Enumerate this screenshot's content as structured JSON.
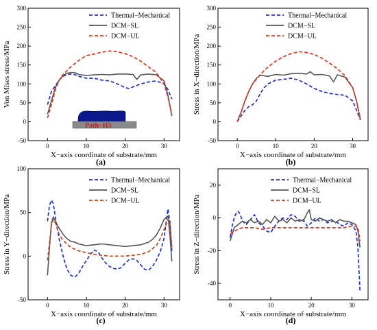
{
  "chart_data": [
    {
      "type": "line",
      "panel_label": "(a)",
      "xlabel": "X−axis coordinate of substrate/mm",
      "ylabel": "Von Mises stress/MPa",
      "xlim": [
        -5,
        34
      ],
      "ylim": [
        -50,
        300
      ],
      "xticks": [
        0,
        10,
        20,
        30
      ],
      "yticks": [
        -50,
        0,
        50,
        100,
        150,
        200,
        250,
        300
      ],
      "legend_position": "top-right",
      "inset_label": "Path−H3",
      "series": [
        {
          "name": "Thermal−Mechanical",
          "color": "#1f2fd6",
          "dash": "dashed",
          "x": [
            0,
            1,
            2,
            3,
            4,
            5,
            6,
            7,
            8,
            9,
            10,
            12,
            14,
            16,
            18,
            20,
            21,
            22,
            24,
            26,
            28,
            30,
            31,
            32
          ],
          "y": [
            45,
            80,
            95,
            110,
            120,
            125,
            126,
            125,
            120,
            118,
            115,
            115,
            110,
            108,
            100,
            90,
            88,
            92,
            100,
            105,
            108,
            100,
            85,
            60
          ]
        },
        {
          "name": "DCM−SL",
          "color": "#555555",
          "dash": "solid",
          "x": [
            0,
            1,
            2,
            3,
            4,
            5,
            6,
            7,
            8,
            10,
            12,
            14,
            16,
            18,
            20,
            22,
            23,
            24,
            26,
            28,
            30,
            31,
            32
          ],
          "y": [
            20,
            55,
            90,
            110,
            122,
            128,
            130,
            130,
            125,
            122,
            124,
            125,
            124,
            126,
            126,
            125,
            112,
            124,
            126,
            124,
            108,
            70,
            15
          ]
        },
        {
          "name": "DCM−UL",
          "color": "#e8301f",
          "dash": "dashed",
          "x": [
            0,
            1,
            2,
            3,
            4,
            6,
            8,
            10,
            12,
            14,
            16,
            18,
            20,
            22,
            24,
            26,
            28,
            30,
            31,
            32
          ],
          "y": [
            10,
            45,
            85,
            110,
            125,
            145,
            162,
            175,
            179,
            184,
            187,
            185,
            180,
            172,
            160,
            145,
            130,
            100,
            65,
            20
          ]
        }
      ]
    },
    {
      "type": "line",
      "panel_label": "(b)",
      "xlabel": "X−axis coordinate of substrate/mm",
      "ylabel": "Stress in X−direction/MPa",
      "xlim": [
        -5,
        34
      ],
      "ylim": [
        -50,
        300
      ],
      "xticks": [
        0,
        10,
        20,
        30
      ],
      "yticks": [
        -50,
        0,
        50,
        100,
        150,
        200,
        250,
        300
      ],
      "legend_position": "top-right",
      "series": [
        {
          "name": "Thermal−Mechanical",
          "color": "#1f2fd6",
          "dash": "dashed",
          "x": [
            0,
            1,
            2,
            3,
            4,
            5,
            6,
            7,
            8,
            10,
            12,
            14,
            16,
            18,
            20,
            22,
            24,
            26,
            28,
            30,
            31,
            32
          ],
          "y": [
            0,
            15,
            30,
            40,
            45,
            55,
            75,
            90,
            100,
            110,
            112,
            115,
            110,
            100,
            88,
            80,
            75,
            72,
            70,
            55,
            30,
            5
          ]
        },
        {
          "name": "DCM−SL",
          "color": "#555555",
          "dash": "solid",
          "x": [
            0,
            1,
            2,
            3,
            4,
            5,
            6,
            8,
            10,
            12,
            14,
            16,
            18,
            19,
            20,
            22,
            24,
            25,
            26,
            28,
            30,
            31,
            32
          ],
          "y": [
            0,
            25,
            55,
            80,
            100,
            115,
            123,
            120,
            125,
            123,
            127,
            128,
            126,
            132,
            124,
            125,
            121,
            105,
            124,
            118,
            90,
            55,
            5
          ]
        },
        {
          "name": "DCM−UL",
          "color": "#e8301f",
          "dash": "dashed",
          "x": [
            0,
            1,
            2,
            3,
            4,
            6,
            8,
            10,
            12,
            14,
            16,
            18,
            20,
            22,
            24,
            26,
            28,
            30,
            31,
            32
          ],
          "y": [
            0,
            25,
            55,
            80,
            100,
            125,
            145,
            160,
            172,
            180,
            185,
            183,
            178,
            168,
            155,
            140,
            122,
            90,
            55,
            5
          ]
        }
      ]
    },
    {
      "type": "line",
      "panel_label": "(c)",
      "xlabel": "X−axis coordinate of substrate/mm",
      "ylabel": "Stress in Y−direction/MPa",
      "xlim": [
        -5,
        34
      ],
      "ylim": [
        -50,
        100
      ],
      "xticks": [
        0,
        10,
        20,
        30
      ],
      "yticks": [
        -50,
        0,
        50,
        100
      ],
      "legend_position": "top-right",
      "series": [
        {
          "name": "Thermal−Mechanical",
          "color": "#1f2fd6",
          "dash": "dashed",
          "x": [
            0,
            0.5,
            1,
            1.5,
            2,
            3,
            4,
            5,
            6,
            7,
            8,
            9,
            10,
            11,
            12,
            13,
            14,
            15,
            16,
            17,
            18,
            19,
            20,
            21,
            22,
            23,
            24,
            25,
            26,
            27,
            28,
            29,
            30,
            30.5,
            31,
            31.5,
            32
          ],
          "y": [
            40,
            58,
            64,
            60,
            45,
            20,
            0,
            -15,
            -22,
            -24,
            -20,
            -12,
            -5,
            2,
            7,
            5,
            -2,
            -8,
            -12,
            -14,
            -15,
            -13,
            -8,
            -4,
            -3,
            -5,
            -10,
            -15,
            -16,
            -12,
            -5,
            5,
            20,
            38,
            54,
            40,
            5
          ]
        },
        {
          "name": "DCM−SL",
          "color": "#555555",
          "dash": "solid",
          "x": [
            0,
            0.5,
            1,
            1.5,
            2,
            3,
            4,
            5,
            6,
            7,
            8,
            9,
            10,
            12,
            14,
            16,
            18,
            20,
            22,
            24,
            26,
            27,
            28,
            29,
            30,
            31,
            31.5,
            32
          ],
          "y": [
            -22,
            10,
            38,
            45,
            40,
            32,
            25,
            20,
            17,
            16,
            14,
            13,
            12,
            13,
            14,
            13,
            12,
            11,
            12,
            13,
            16,
            19,
            24,
            32,
            42,
            46,
            25,
            -6
          ]
        },
        {
          "name": "DCM−UL",
          "color": "#c8451a",
          "dash": "dashed",
          "x": [
            0,
            0.5,
            1,
            1.5,
            2,
            3,
            4,
            6,
            8,
            10,
            12,
            14,
            16,
            18,
            20,
            22,
            24,
            26,
            28,
            29,
            30,
            31,
            31.5,
            32
          ],
          "y": [
            -5,
            15,
            35,
            42,
            38,
            25,
            18,
            10,
            6,
            4,
            2,
            1,
            0,
            0,
            0,
            1,
            2,
            5,
            12,
            20,
            30,
            42,
            38,
            10
          ]
        }
      ]
    },
    {
      "type": "line",
      "panel_label": "(d)",
      "xlabel": "X−axis coordinate of substrate/mm",
      "ylabel": "Stress in Z−direction/MPa",
      "xlim": [
        -3,
        34
      ],
      "ylim": [
        -50,
        30
      ],
      "xticks": [
        0,
        10,
        20,
        30
      ],
      "yticks": [
        -40,
        -20,
        0,
        20
      ],
      "legend_position": "top-right",
      "series": [
        {
          "name": "Thermal−Mechanical",
          "color": "#1f2fd6",
          "dash": "dashed",
          "x": [
            0,
            0.5,
            1,
            1.5,
            2,
            2.5,
            3,
            4,
            5,
            6,
            7,
            8,
            9,
            10,
            11,
            12,
            13,
            14,
            15,
            16,
            17,
            18,
            19,
            20,
            21,
            22,
            23,
            24,
            25,
            26,
            27,
            28,
            29,
            30,
            30.5,
            31,
            31.5,
            32
          ],
          "y": [
            -12,
            -5,
            0,
            3,
            4,
            2,
            -2,
            -4,
            -1,
            2,
            -3,
            -5,
            -8,
            -9,
            -5,
            -2,
            0,
            -1,
            2,
            1,
            -2,
            -1,
            -5,
            -3,
            0,
            -2,
            -1,
            -3,
            -2,
            -2,
            -4,
            -5,
            -3,
            -4,
            -6,
            -8,
            -18,
            -45
          ]
        },
        {
          "name": "DCM−SL",
          "color": "#555555",
          "dash": "solid",
          "x": [
            0,
            1,
            2,
            3,
            4,
            5,
            6,
            7,
            8,
            9,
            10,
            11,
            12,
            13,
            14,
            15,
            16,
            17,
            18,
            19,
            19.5,
            20,
            21,
            22,
            23,
            24,
            25,
            26,
            27,
            28,
            29,
            30,
            31,
            31.5,
            32
          ],
          "y": [
            -14,
            -6,
            -4,
            -2,
            -3,
            -1,
            -3,
            -2,
            -4,
            -1,
            -3,
            1,
            -2,
            -1,
            -3,
            0,
            -2,
            -1,
            -2,
            3,
            5,
            -1,
            -2,
            0,
            -1,
            -2,
            -1,
            -3,
            -1,
            -2,
            -2,
            -3,
            -4,
            -8,
            -18
          ]
        },
        {
          "name": "DCM−UL",
          "color": "#e8301f",
          "dash": "dashed",
          "x": [
            0,
            1,
            2,
            3,
            4,
            6,
            8,
            10,
            12,
            14,
            16,
            18,
            20,
            22,
            24,
            26,
            28,
            30,
            31,
            31.5,
            32
          ],
          "y": [
            -10,
            -8,
            -7,
            -6,
            -6,
            -6,
            -7,
            -6,
            -6,
            -6,
            -6,
            -6,
            -6,
            -6,
            -6,
            -6,
            -6,
            -5,
            -5,
            -6,
            -14
          ]
        }
      ]
    }
  ]
}
